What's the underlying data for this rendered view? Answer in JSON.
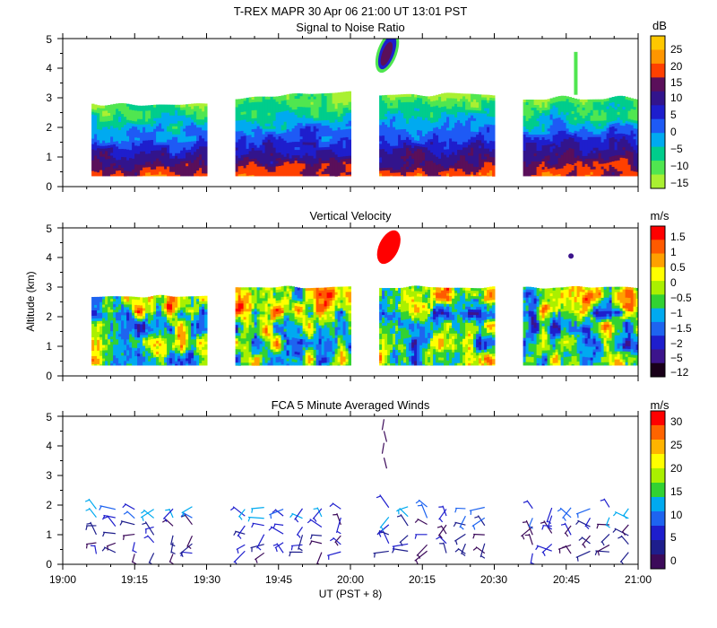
{
  "header": {
    "title": "T-REX   MAPR 30 Apr 06   21:00 UT   13:01   PST"
  },
  "x_axis": {
    "label": "UT  (PST + 8)",
    "ticks": [
      "19:00",
      "19:15",
      "19:30",
      "19:45",
      "20:00",
      "20:15",
      "20:30",
      "20:45",
      "21:00"
    ]
  },
  "chart_data": [
    {
      "type": "heatmap",
      "title": "Signal to Noise Ratio",
      "ylabel": "",
      "units": "dB",
      "xlim": [
        "19:00",
        "21:00"
      ],
      "ylim": [
        0,
        5
      ],
      "yticks": [
        "0",
        "1",
        "2",
        "3",
        "4",
        "5"
      ],
      "colorbar": {
        "labels": [
          "25",
          "20",
          "15",
          "10",
          "5",
          "0",
          "−5",
          "−10",
          "−15"
        ],
        "colors": [
          "#ffc800",
          "#ff9600",
          "#ff4000",
          "#5a0f5a",
          "#32148c",
          "#1e1ecd",
          "#1e5af5",
          "#00aaf0",
          "#00cd8c",
          "#50e650",
          "#aaf032"
        ]
      },
      "data_segments_ut": [
        [
          "19:06",
          "19:30"
        ],
        [
          "19:36",
          "20:00"
        ],
        [
          "20:06",
          "20:30"
        ],
        [
          "20:36",
          "21:00"
        ]
      ]
    },
    {
      "type": "heatmap",
      "title": "Vertical Velocity",
      "ylabel": "Altitude (km)",
      "units": "m/s",
      "xlim": [
        "19:00",
        "21:00"
      ],
      "ylim": [
        0,
        5
      ],
      "yticks": [
        "0",
        "1",
        "2",
        "3",
        "4",
        "5"
      ],
      "colorbar": {
        "labels": [
          "1.5",
          "1",
          "0.5",
          "0",
          "−0.5",
          "−1",
          "−1.5",
          "−2",
          "−5",
          "−12"
        ],
        "colors": [
          "#ff0000",
          "#ff5a00",
          "#ffa000",
          "#ffff00",
          "#aaf000",
          "#32d232",
          "#00aaf0",
          "#1e64f0",
          "#1e1ecd",
          "#3c148c",
          "#190019"
        ]
      },
      "data_segments_ut": [
        [
          "19:06",
          "19:30"
        ],
        [
          "19:36",
          "20:00"
        ],
        [
          "20:06",
          "20:30"
        ],
        [
          "20:36",
          "21:00"
        ]
      ]
    },
    {
      "type": "scatter",
      "title": "FCA 5 Minute Averaged Winds",
      "ylabel": "",
      "units": "m/s",
      "xlim": [
        "19:00",
        "21:00"
      ],
      "ylim": [
        0,
        5
      ],
      "yticks": [
        "0",
        "1",
        "2",
        "3",
        "4",
        "5"
      ],
      "colorbar": {
        "labels": [
          "30",
          "25",
          "20",
          "15",
          "10",
          "5",
          "0"
        ],
        "colors": [
          "#ff0000",
          "#ff6400",
          "#ffb400",
          "#ffff00",
          "#aaf000",
          "#32d232",
          "#00aaf0",
          "#1e64f0",
          "#1e1ecd",
          "#1e1e8c",
          "#3c0a5a"
        ]
      },
      "barb_columns_ut": [
        "19:07",
        "19:11",
        "19:15",
        "19:19",
        "19:23",
        "19:27",
        "19:38",
        "19:42",
        "19:46",
        "19:50",
        "19:54",
        "19:58",
        "20:08",
        "20:12",
        "20:16",
        "20:20",
        "20:24",
        "20:28",
        "20:38",
        "20:42",
        "20:46",
        "20:50",
        "20:54",
        "20:58"
      ]
    }
  ]
}
